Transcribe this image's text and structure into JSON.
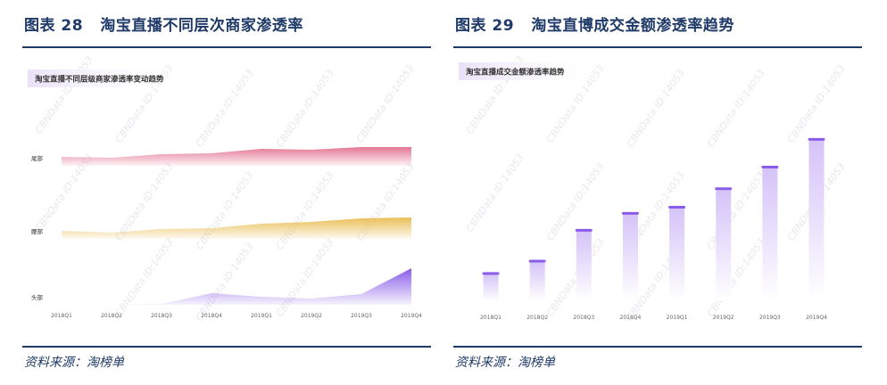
{
  "left": {
    "fig_label": "图表 28",
    "title": "淘宝直播不同层次商家渗透率",
    "source": "资料来源：淘榜单",
    "watermark": "CBNData ID:14053",
    "chart_data": {
      "type": "area",
      "title": "淘宝直播不同层级商家渗透率变动趋势",
      "categories": [
        "2018Q1",
        "2018Q2",
        "2018Q3",
        "2018Q4",
        "2019Q1",
        "2019Q2",
        "2019Q3",
        "2019Q4"
      ],
      "series": [
        {
          "name": "尾部",
          "values": [
            10,
            9,
            13,
            14,
            19,
            18,
            21,
            21
          ],
          "color": "#e47693"
        },
        {
          "name": "腰部",
          "values": [
            9,
            7,
            11,
            12,
            17,
            19,
            23,
            24
          ],
          "color": "#eabf57"
        },
        {
          "name": "头部",
          "values": [
            0,
            0,
            1,
            13,
            9,
            7,
            12,
            41
          ],
          "color": "#8a5ce9"
        }
      ]
    }
  },
  "right": {
    "fig_label": "图表 29",
    "title": "淘宝直博成交金额渗透率趋势",
    "source": "资料来源：淘榜单",
    "watermark": "CBNData ID:14053",
    "chart_data": {
      "type": "bar",
      "title": "淘宝直播成交金额渗透率趋势",
      "categories": [
        "2018Q1",
        "2018Q2",
        "2018Q3",
        "2018Q4",
        "2019Q1",
        "2019Q2",
        "2019Q3",
        "2019Q4"
      ],
      "values": [
        18,
        26,
        46,
        57,
        61,
        73,
        87,
        105
      ],
      "color": "#8a5ce9"
    }
  }
}
